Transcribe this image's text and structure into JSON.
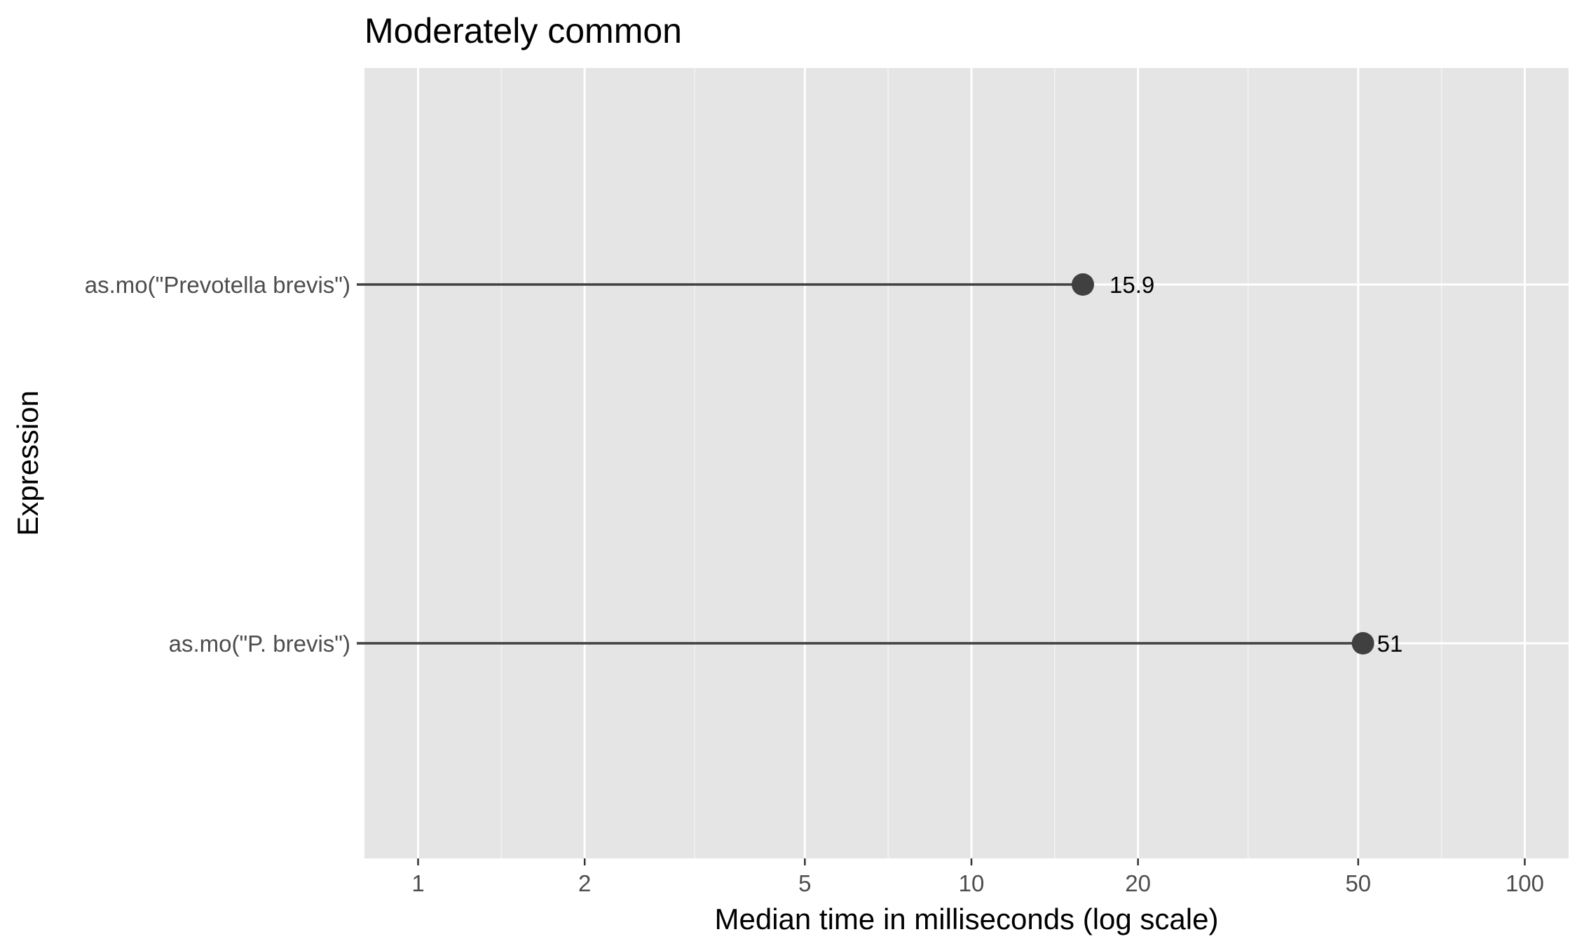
{
  "chart_data": {
    "type": "lollipop",
    "title": "Moderately common",
    "xlabel": "Median time in milliseconds (log scale)",
    "ylabel": "Expression",
    "x_scale": "log10",
    "xlim": [
      0.8,
      120
    ],
    "x_ticks": [
      {
        "value": 1,
        "label": "1"
      },
      {
        "value": 2,
        "label": "2"
      },
      {
        "value": 5,
        "label": "5"
      },
      {
        "value": 10,
        "label": "10"
      },
      {
        "value": 20,
        "label": "20"
      },
      {
        "value": 50,
        "label": "50"
      },
      {
        "value": 100,
        "label": "100"
      }
    ],
    "x_minor_gridlines": [
      1.4142,
      3.1623,
      7.0711,
      14.142,
      31.623,
      70.711
    ],
    "categories": [
      "as.mo(\"Prevotella brevis\")",
      "as.mo(\"P. brevis\")"
    ],
    "values": [
      15.9,
      51
    ],
    "value_labels": [
      "15.9",
      "51"
    ],
    "grid": true,
    "legend": "none"
  },
  "colors": {
    "panel_background": "#e5e5e5",
    "grid_major": "#ffffff",
    "grid_minor": "#f2f2f2",
    "mark": "#404040",
    "tick_text": "#4d4d4d"
  }
}
